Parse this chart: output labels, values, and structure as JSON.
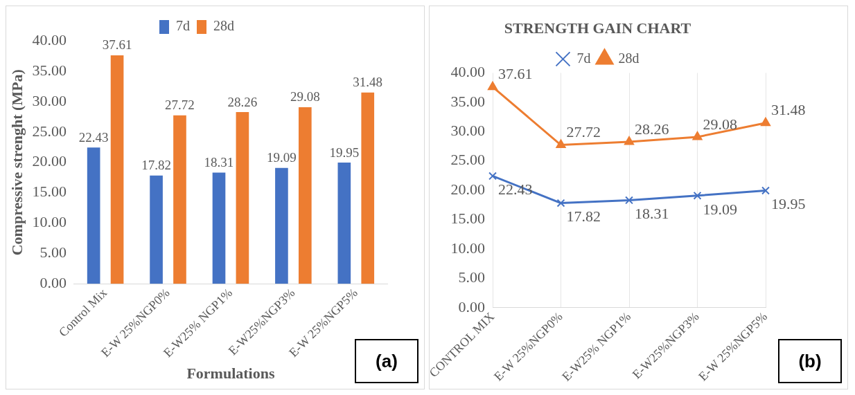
{
  "chart_data": [
    {
      "type": "bar",
      "categories": [
        "Control Mix",
        "E-W 25%NGP0%",
        "E-W25% NGP1%",
        "E-W25%NGP3%",
        "E-W 25%NGP5%"
      ],
      "series": [
        {
          "name": "7d",
          "color": "#4472c4",
          "values": [
            22.43,
            17.82,
            18.31,
            19.09,
            19.95
          ]
        },
        {
          "name": "28d",
          "color": "#ed7d31",
          "values": [
            37.61,
            27.72,
            28.26,
            29.08,
            31.48
          ]
        }
      ],
      "ylabel": "Compressive strenght (MPa)",
      "xlabel": "Formulations",
      "ylim": [
        0,
        40
      ],
      "yticks": [
        {
          "value": 0,
          "label": "0.00"
        },
        {
          "value": 5,
          "label": "5.00"
        },
        {
          "value": 10,
          "label": "10.00"
        },
        {
          "value": 15,
          "label": "15.00"
        },
        {
          "value": 20,
          "label": "20.00"
        },
        {
          "value": 25,
          "label": "25.00"
        },
        {
          "value": 30,
          "label": "30.00"
        },
        {
          "value": 35,
          "label": "35.00"
        },
        {
          "value": 40,
          "label": "40.00"
        }
      ],
      "grid": false,
      "legend": "top",
      "data_labels": true,
      "annotations": [
        "(a)"
      ]
    },
    {
      "type": "line",
      "title": "STRENGTH GAIN CHART",
      "categories": [
        "CONTROL MIX",
        "E-W 25%NGP0%",
        "E-W25% NGP1%",
        "E-W25%NGP3%",
        "E-W 25%NGP5%"
      ],
      "series": [
        {
          "name": "7d",
          "color": "#4472c4",
          "marker": "cross",
          "values": [
            22.43,
            17.82,
            18.31,
            19.09,
            19.95
          ]
        },
        {
          "name": "28d",
          "color": "#ed7d31",
          "marker": "triangle",
          "values": [
            37.61,
            27.72,
            28.26,
            29.08,
            31.48
          ]
        }
      ],
      "ylim": [
        0,
        40
      ],
      "yticks": [
        {
          "value": 0,
          "label": "0.00"
        },
        {
          "value": 5,
          "label": "5.00"
        },
        {
          "value": 10,
          "label": "10.00"
        },
        {
          "value": 15,
          "label": "15.00"
        },
        {
          "value": 20,
          "label": "20.00"
        },
        {
          "value": 25,
          "label": "25.00"
        },
        {
          "value": 30,
          "label": "30.00"
        },
        {
          "value": 35,
          "label": "35.00"
        },
        {
          "value": 40,
          "label": "40.00"
        }
      ],
      "grid": "x",
      "legend": "top",
      "data_labels": true,
      "annotations": [
        "(b)"
      ]
    }
  ]
}
